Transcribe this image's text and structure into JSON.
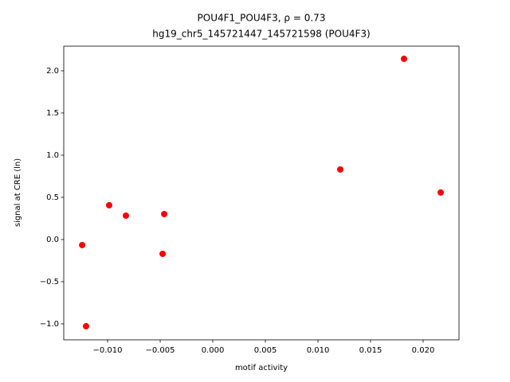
{
  "chart_data": {
    "type": "scatter",
    "title": "POU4F1_POU4F3, ρ = 0.73",
    "subtitle": "hg19_chr5_145721447_145721598 (POU4F3)",
    "x_label": "motif activity",
    "y_label": "signal at CRE (ln)",
    "color": "#ff0000",
    "x": [
      -0.01242,
      -0.01205,
      -0.00985,
      -0.00826,
      -0.00477,
      -0.00462,
      0.01212,
      0.01818,
      0.02167
    ],
    "values": [
      -0.066,
      -1.028,
      0.406,
      0.283,
      -0.17,
      0.302,
      0.83,
      2.142,
      0.557
    ],
    "xlim": [
      -0.01417,
      0.02341
    ],
    "ylim": [
      -1.189,
      2.292
    ],
    "xticks": [
      {
        "value": -0.01,
        "label": "−0.010"
      },
      {
        "value": -0.005,
        "label": "−0.005"
      },
      {
        "value": 0,
        "label": "0.000"
      },
      0.005,
      {
        "value": 0.01,
        "label": "0.010"
      },
      0.015,
      {
        "value": 0.02,
        "label": "0.020"
      }
    ],
    "yticks": [
      {
        "value": -1,
        "label": "−1.0"
      },
      {
        "value": -0.5,
        "label": "−0.5"
      },
      {
        "value": 0,
        "label": "0.0"
      },
      0.5,
      {
        "value": 1,
        "label": "1.0"
      },
      1.5,
      {
        "value": 2,
        "label": "2.0"
      }
    ],
    "grid": false
  }
}
